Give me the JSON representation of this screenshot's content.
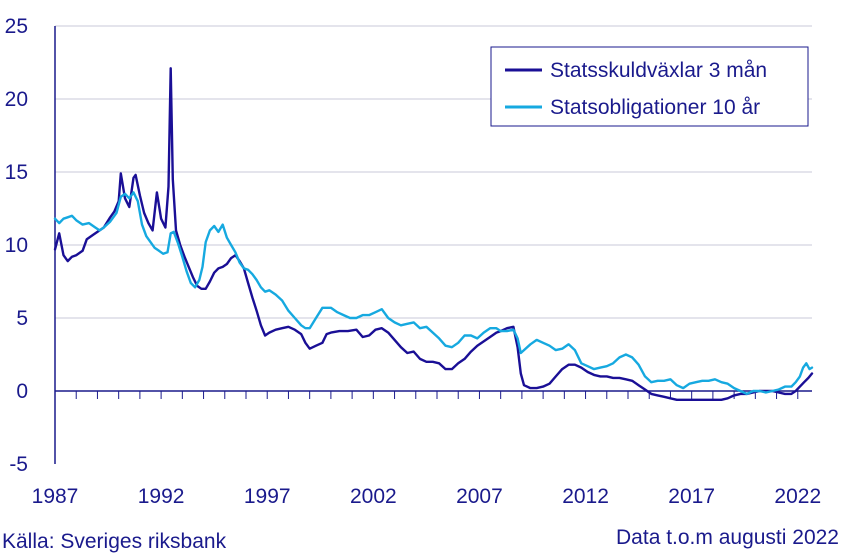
{
  "chart_data": {
    "type": "line",
    "title": "",
    "xlabel": "",
    "ylabel": "",
    "xlim": [
      1987.0,
      2022.67
    ],
    "ylim": [
      -5,
      25
    ],
    "yticks": [
      -5,
      0,
      5,
      10,
      15,
      20,
      25
    ],
    "xticks": [
      1987,
      1992,
      1997,
      2002,
      2007,
      2012,
      2017,
      2022
    ],
    "grid": "horizontal",
    "legend_position": "top-right",
    "series": [
      {
        "name": "Statsskuldväxlar 3 mån",
        "color": "#1a0f96",
        "points": [
          [
            1987.0,
            9.7
          ],
          [
            1987.2,
            10.8
          ],
          [
            1987.4,
            9.3
          ],
          [
            1987.6,
            8.9
          ],
          [
            1987.8,
            9.2
          ],
          [
            1988.0,
            9.3
          ],
          [
            1988.3,
            9.6
          ],
          [
            1988.5,
            10.4
          ],
          [
            1988.8,
            10.7
          ],
          [
            1989.0,
            10.9
          ],
          [
            1989.3,
            11.2
          ],
          [
            1989.6,
            11.9
          ],
          [
            1989.8,
            12.3
          ],
          [
            1990.0,
            13.0
          ],
          [
            1990.1,
            14.9
          ],
          [
            1990.3,
            13.2
          ],
          [
            1990.5,
            12.6
          ],
          [
            1990.7,
            14.6
          ],
          [
            1990.8,
            14.8
          ],
          [
            1991.0,
            13.4
          ],
          [
            1991.2,
            12.2
          ],
          [
            1991.4,
            11.5
          ],
          [
            1991.6,
            11.0
          ],
          [
            1991.8,
            13.6
          ],
          [
            1992.0,
            11.8
          ],
          [
            1992.2,
            11.2
          ],
          [
            1992.35,
            14.0
          ],
          [
            1992.45,
            22.1
          ],
          [
            1992.55,
            14.5
          ],
          [
            1992.7,
            11.0
          ],
          [
            1992.9,
            10.0
          ],
          [
            1993.1,
            9.2
          ],
          [
            1993.3,
            8.5
          ],
          [
            1993.5,
            7.8
          ],
          [
            1993.7,
            7.2
          ],
          [
            1993.9,
            7.0
          ],
          [
            1994.1,
            7.0
          ],
          [
            1994.3,
            7.5
          ],
          [
            1994.5,
            8.1
          ],
          [
            1994.7,
            8.4
          ],
          [
            1994.9,
            8.5
          ],
          [
            1995.1,
            8.7
          ],
          [
            1995.3,
            9.1
          ],
          [
            1995.5,
            9.3
          ],
          [
            1995.7,
            8.9
          ],
          [
            1995.9,
            8.4
          ],
          [
            1996.1,
            7.4
          ],
          [
            1996.3,
            6.4
          ],
          [
            1996.5,
            5.5
          ],
          [
            1996.7,
            4.5
          ],
          [
            1996.9,
            3.8
          ],
          [
            1997.1,
            4.0
          ],
          [
            1997.4,
            4.2
          ],
          [
            1997.7,
            4.3
          ],
          [
            1998.0,
            4.4
          ],
          [
            1998.3,
            4.2
          ],
          [
            1998.6,
            3.9
          ],
          [
            1998.8,
            3.3
          ],
          [
            1999.0,
            2.9
          ],
          [
            1999.3,
            3.1
          ],
          [
            1999.6,
            3.3
          ],
          [
            1999.8,
            3.9
          ],
          [
            2000.0,
            4.0
          ],
          [
            2000.4,
            4.1
          ],
          [
            2000.8,
            4.1
          ],
          [
            2001.2,
            4.2
          ],
          [
            2001.5,
            3.7
          ],
          [
            2001.8,
            3.8
          ],
          [
            2002.1,
            4.2
          ],
          [
            2002.4,
            4.3
          ],
          [
            2002.7,
            4.0
          ],
          [
            2003.0,
            3.5
          ],
          [
            2003.3,
            3.0
          ],
          [
            2003.6,
            2.6
          ],
          [
            2003.9,
            2.7
          ],
          [
            2004.2,
            2.2
          ],
          [
            2004.5,
            2.0
          ],
          [
            2004.8,
            2.0
          ],
          [
            2005.1,
            1.9
          ],
          [
            2005.4,
            1.5
          ],
          [
            2005.7,
            1.5
          ],
          [
            2006.0,
            1.9
          ],
          [
            2006.3,
            2.2
          ],
          [
            2006.6,
            2.7
          ],
          [
            2006.9,
            3.1
          ],
          [
            2007.2,
            3.4
          ],
          [
            2007.5,
            3.7
          ],
          [
            2007.8,
            4.0
          ],
          [
            2008.0,
            4.1
          ],
          [
            2008.3,
            4.3
          ],
          [
            2008.6,
            4.4
          ],
          [
            2008.8,
            3.0
          ],
          [
            2008.95,
            1.2
          ],
          [
            2009.1,
            0.4
          ],
          [
            2009.4,
            0.2
          ],
          [
            2009.7,
            0.2
          ],
          [
            2010.0,
            0.3
          ],
          [
            2010.3,
            0.5
          ],
          [
            2010.6,
            1.0
          ],
          [
            2010.9,
            1.5
          ],
          [
            2011.2,
            1.8
          ],
          [
            2011.5,
            1.8
          ],
          [
            2011.8,
            1.6
          ],
          [
            2012.1,
            1.3
          ],
          [
            2012.4,
            1.1
          ],
          [
            2012.7,
            1.0
          ],
          [
            2013.0,
            1.0
          ],
          [
            2013.3,
            0.9
          ],
          [
            2013.6,
            0.9
          ],
          [
            2013.9,
            0.8
          ],
          [
            2014.2,
            0.7
          ],
          [
            2014.5,
            0.4
          ],
          [
            2014.8,
            0.1
          ],
          [
            2015.1,
            -0.2
          ],
          [
            2015.4,
            -0.3
          ],
          [
            2015.7,
            -0.4
          ],
          [
            2016.0,
            -0.5
          ],
          [
            2016.3,
            -0.6
          ],
          [
            2016.6,
            -0.6
          ],
          [
            2016.9,
            -0.6
          ],
          [
            2017.2,
            -0.6
          ],
          [
            2017.5,
            -0.6
          ],
          [
            2017.8,
            -0.6
          ],
          [
            2018.1,
            -0.6
          ],
          [
            2018.4,
            -0.6
          ],
          [
            2018.7,
            -0.5
          ],
          [
            2019.0,
            -0.3
          ],
          [
            2019.3,
            -0.2
          ],
          [
            2019.6,
            -0.2
          ],
          [
            2019.9,
            -0.1
          ],
          [
            2020.2,
            0.0
          ],
          [
            2020.5,
            0.0
          ],
          [
            2020.8,
            0.0
          ],
          [
            2021.1,
            -0.1
          ],
          [
            2021.4,
            -0.2
          ],
          [
            2021.7,
            -0.2
          ],
          [
            2021.9,
            0.0
          ],
          [
            2022.1,
            0.3
          ],
          [
            2022.3,
            0.6
          ],
          [
            2022.5,
            0.9
          ],
          [
            2022.67,
            1.2
          ]
        ]
      },
      {
        "name": "Statsobligationer 10 år",
        "color": "#16a9e0",
        "points": [
          [
            1987.0,
            11.8
          ],
          [
            1987.2,
            11.5
          ],
          [
            1987.4,
            11.8
          ],
          [
            1987.6,
            11.9
          ],
          [
            1987.8,
            12.0
          ],
          [
            1988.0,
            11.7
          ],
          [
            1988.3,
            11.4
          ],
          [
            1988.6,
            11.5
          ],
          [
            1988.9,
            11.2
          ],
          [
            1989.1,
            11.0
          ],
          [
            1989.3,
            11.2
          ],
          [
            1989.6,
            11.6
          ],
          [
            1989.9,
            12.2
          ],
          [
            1990.1,
            13.3
          ],
          [
            1990.3,
            13.5
          ],
          [
            1990.5,
            13.2
          ],
          [
            1990.7,
            13.6
          ],
          [
            1990.9,
            13.0
          ],
          [
            1991.1,
            11.4
          ],
          [
            1991.3,
            10.6
          ],
          [
            1991.5,
            10.2
          ],
          [
            1991.7,
            9.8
          ],
          [
            1991.9,
            9.6
          ],
          [
            1992.1,
            9.4
          ],
          [
            1992.3,
            9.5
          ],
          [
            1992.45,
            10.8
          ],
          [
            1992.6,
            10.9
          ],
          [
            1992.8,
            10.1
          ],
          [
            1993.0,
            9.2
          ],
          [
            1993.2,
            8.2
          ],
          [
            1993.4,
            7.4
          ],
          [
            1993.6,
            7.1
          ],
          [
            1993.8,
            7.6
          ],
          [
            1993.95,
            8.5
          ],
          [
            1994.1,
            10.2
          ],
          [
            1994.3,
            11.0
          ],
          [
            1994.5,
            11.3
          ],
          [
            1994.7,
            10.9
          ],
          [
            1994.9,
            11.4
          ],
          [
            1995.1,
            10.5
          ],
          [
            1995.3,
            10.0
          ],
          [
            1995.5,
            9.5
          ],
          [
            1995.7,
            8.8
          ],
          [
            1995.9,
            8.4
          ],
          [
            1996.1,
            8.3
          ],
          [
            1996.3,
            8.0
          ],
          [
            1996.5,
            7.6
          ],
          [
            1996.7,
            7.1
          ],
          [
            1996.9,
            6.8
          ],
          [
            1997.1,
            6.9
          ],
          [
            1997.4,
            6.6
          ],
          [
            1997.7,
            6.2
          ],
          [
            1998.0,
            5.5
          ],
          [
            1998.3,
            5.0
          ],
          [
            1998.6,
            4.5
          ],
          [
            1998.8,
            4.3
          ],
          [
            1999.0,
            4.3
          ],
          [
            1999.3,
            5.0
          ],
          [
            1999.6,
            5.7
          ],
          [
            1999.8,
            5.7
          ],
          [
            2000.0,
            5.7
          ],
          [
            2000.3,
            5.4
          ],
          [
            2000.6,
            5.2
          ],
          [
            2000.9,
            5.0
          ],
          [
            2001.2,
            5.0
          ],
          [
            2001.5,
            5.2
          ],
          [
            2001.8,
            5.2
          ],
          [
            2002.1,
            5.4
          ],
          [
            2002.4,
            5.6
          ],
          [
            2002.7,
            5.0
          ],
          [
            2003.0,
            4.7
          ],
          [
            2003.3,
            4.5
          ],
          [
            2003.6,
            4.6
          ],
          [
            2003.9,
            4.7
          ],
          [
            2004.2,
            4.3
          ],
          [
            2004.5,
            4.4
          ],
          [
            2004.8,
            4.0
          ],
          [
            2005.1,
            3.6
          ],
          [
            2005.4,
            3.1
          ],
          [
            2005.7,
            3.0
          ],
          [
            2006.0,
            3.3
          ],
          [
            2006.3,
            3.8
          ],
          [
            2006.6,
            3.8
          ],
          [
            2006.9,
            3.6
          ],
          [
            2007.2,
            4.0
          ],
          [
            2007.5,
            4.3
          ],
          [
            2007.8,
            4.3
          ],
          [
            2008.0,
            4.1
          ],
          [
            2008.3,
            4.1
          ],
          [
            2008.6,
            4.2
          ],
          [
            2008.8,
            3.6
          ],
          [
            2008.95,
            2.6
          ],
          [
            2009.1,
            2.8
          ],
          [
            2009.4,
            3.2
          ],
          [
            2009.7,
            3.5
          ],
          [
            2010.0,
            3.3
          ],
          [
            2010.3,
            3.1
          ],
          [
            2010.6,
            2.8
          ],
          [
            2010.9,
            2.9
          ],
          [
            2011.2,
            3.2
          ],
          [
            2011.5,
            2.8
          ],
          [
            2011.8,
            1.9
          ],
          [
            2012.1,
            1.7
          ],
          [
            2012.4,
            1.5
          ],
          [
            2012.7,
            1.6
          ],
          [
            2013.0,
            1.7
          ],
          [
            2013.3,
            1.9
          ],
          [
            2013.6,
            2.3
          ],
          [
            2013.9,
            2.5
          ],
          [
            2014.2,
            2.3
          ],
          [
            2014.5,
            1.8
          ],
          [
            2014.8,
            1.0
          ],
          [
            2015.1,
            0.6
          ],
          [
            2015.4,
            0.7
          ],
          [
            2015.7,
            0.7
          ],
          [
            2016.0,
            0.8
          ],
          [
            2016.3,
            0.4
          ],
          [
            2016.6,
            0.2
          ],
          [
            2016.9,
            0.5
          ],
          [
            2017.2,
            0.6
          ],
          [
            2017.5,
            0.7
          ],
          [
            2017.8,
            0.7
          ],
          [
            2018.1,
            0.8
          ],
          [
            2018.4,
            0.6
          ],
          [
            2018.7,
            0.5
          ],
          [
            2019.0,
            0.2
          ],
          [
            2019.3,
            0.0
          ],
          [
            2019.6,
            -0.2
          ],
          [
            2019.9,
            0.0
          ],
          [
            2020.2,
            0.0
          ],
          [
            2020.5,
            -0.1
          ],
          [
            2020.8,
            0.0
          ],
          [
            2021.1,
            0.1
          ],
          [
            2021.4,
            0.3
          ],
          [
            2021.7,
            0.3
          ],
          [
            2021.9,
            0.6
          ],
          [
            2022.1,
            1.0
          ],
          [
            2022.25,
            1.6
          ],
          [
            2022.4,
            1.9
          ],
          [
            2022.55,
            1.5
          ],
          [
            2022.67,
            1.6
          ]
        ]
      }
    ]
  },
  "footer": {
    "source": "Källa: Sveriges riksbank",
    "note": "Data t.o.m augusti 2022"
  }
}
